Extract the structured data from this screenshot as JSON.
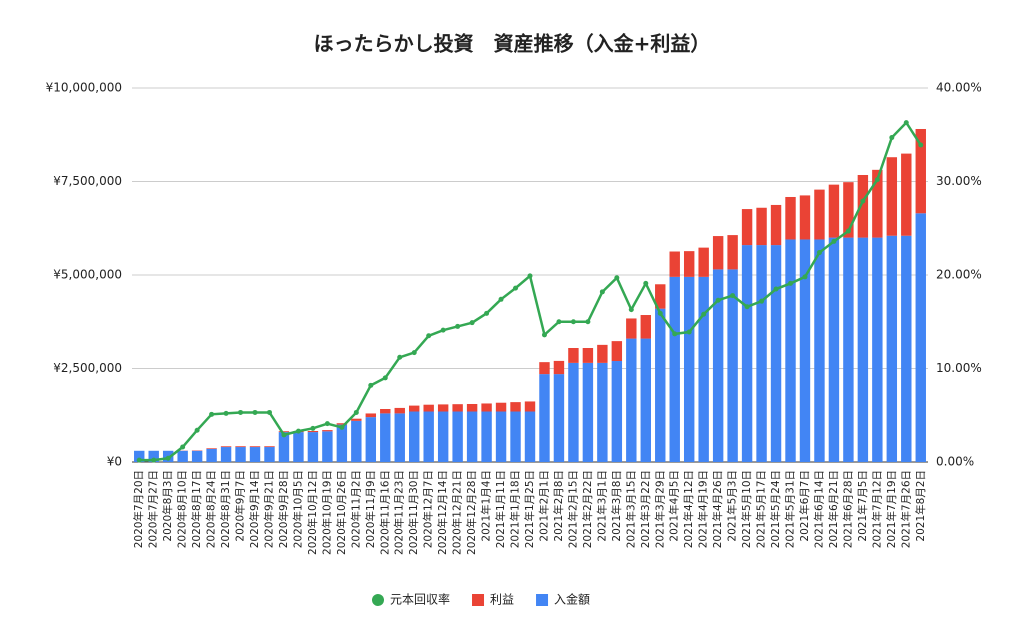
{
  "chart_data": {
    "type": "bar",
    "title": "ほったらかし投資　資産推移（入金+利益）",
    "categories": [
      "2020年7月20日",
      "2020年7月27日",
      "2020年8月3日",
      "2020年8月10日",
      "2020年8月17日",
      "2020年8月24日",
      "2020年8月31日",
      "2020年9月7日",
      "2020年9月14日",
      "2020年9月21日",
      "2020年9月28日",
      "2020年10月5日",
      "2020年10月12日",
      "2020年10月19日",
      "2020年10月26日",
      "2020年11月2日",
      "2020年11月9日",
      "2020年11月16日",
      "2020年11月23日",
      "2020年11月30日",
      "2020年12月7日",
      "2020年12月14日",
      "2020年12月21日",
      "2020年12月28日",
      "2021年1月4日",
      "2021年1月11日",
      "2021年1月18日",
      "2021年1月25日",
      "2021年2月1日",
      "2021年2月8日",
      "2021年2月15日",
      "2021年2月22日",
      "2021年3月1日",
      "2021年3月8日",
      "2021年3月15日",
      "2021年3月22日",
      "2021年3月29日",
      "2021年4月5日",
      "2021年4月12日",
      "2021年4月19日",
      "2021年4月26日",
      "2021年5月3日",
      "2021年5月10日",
      "2021年5月17日",
      "2021年5月24日",
      "2021年5月31日",
      "2021年6月7日",
      "2021年6月14日",
      "2021年6月21日",
      "2021年6月28日",
      "2021年7月5日",
      "2021年7月12日",
      "2021年7月19日",
      "2021年7月26日",
      "2021年8月2日"
    ],
    "series": [
      {
        "name": "元本回収率",
        "color": "#34a853",
        "type": "line",
        "axis": "y2",
        "values": [
          0.2,
          0.2,
          0.4,
          1.6,
          3.4,
          5.1,
          5.2,
          5.3,
          5.3,
          5.3,
          2.9,
          3.3,
          3.6,
          4.1,
          3.7,
          5.3,
          8.2,
          9.0,
          11.2,
          11.7,
          13.5,
          14.1,
          14.5,
          14.9,
          15.9,
          17.4,
          18.6,
          19.9,
          13.6,
          15.0,
          15.0,
          15.0,
          18.2,
          19.7,
          16.3,
          19.1,
          15.9,
          13.7,
          13.9,
          15.8,
          17.3,
          17.8,
          16.6,
          17.2,
          18.5,
          19.1,
          19.8,
          22.4,
          23.6,
          24.7,
          27.9,
          30.2,
          34.7,
          36.3,
          33.9
        ]
      },
      {
        "name": "利益",
        "color": "#ea4335",
        "type": "bar",
        "values": [
          0,
          0,
          0,
          5000,
          10000,
          18000,
          20000,
          21000,
          21000,
          21000,
          23000,
          27000,
          29000,
          33000,
          37000,
          58000,
          98000,
          117000,
          146000,
          158000,
          182000,
          190000,
          196000,
          201000,
          215000,
          235000,
          251000,
          269000,
          320000,
          353000,
          398000,
          398000,
          482000,
          532000,
          538000,
          630000,
          652000,
          678000,
          688000,
          782000,
          891000,
          917000,
          963000,
          998000,
          1073000,
          1136000,
          1178000,
          1333000,
          1416000,
          1482000,
          1674000,
          1812000,
          2099000,
          2196000,
          2254000
        ]
      },
      {
        "name": "入金額",
        "color": "#4285f4",
        "type": "bar",
        "values": [
          300000,
          300000,
          300000,
          300000,
          300000,
          350000,
          400000,
          400000,
          400000,
          400000,
          800000,
          800000,
          800000,
          820000,
          1000000,
          1100000,
          1200000,
          1300000,
          1300000,
          1350000,
          1350000,
          1350000,
          1350000,
          1350000,
          1350000,
          1350000,
          1350000,
          1350000,
          2350000,
          2350000,
          2650000,
          2650000,
          2650000,
          2700000,
          3300000,
          3300000,
          4100000,
          4950000,
          4950000,
          4950000,
          5150000,
          5150000,
          5800000,
          5800000,
          5800000,
          5950000,
          5950000,
          5950000,
          6000000,
          6000000,
          6000000,
          6000000,
          6050000,
          6050000,
          6650000
        ]
      }
    ],
    "ylim": [
      0,
      10000000
    ],
    "yticks": [
      {
        "value": 0,
        "label": "¥0"
      },
      {
        "value": 2500000,
        "label": "¥2,500,000"
      },
      {
        "value": 5000000,
        "label": "¥5,000,000"
      },
      {
        "value": 7500000,
        "label": "¥7,500,000"
      },
      {
        "value": 10000000,
        "label": "¥10,000,000"
      }
    ],
    "y2lim": [
      0,
      40
    ],
    "y2ticks": [
      {
        "value": 0,
        "label": "0.00%"
      },
      {
        "value": 10,
        "label": "10.00%"
      },
      {
        "value": 20,
        "label": "20.00%"
      },
      {
        "value": 30,
        "label": "30.00%"
      },
      {
        "value": 40,
        "label": "40.00%"
      }
    ],
    "grid": true,
    "legend": "bottom"
  }
}
